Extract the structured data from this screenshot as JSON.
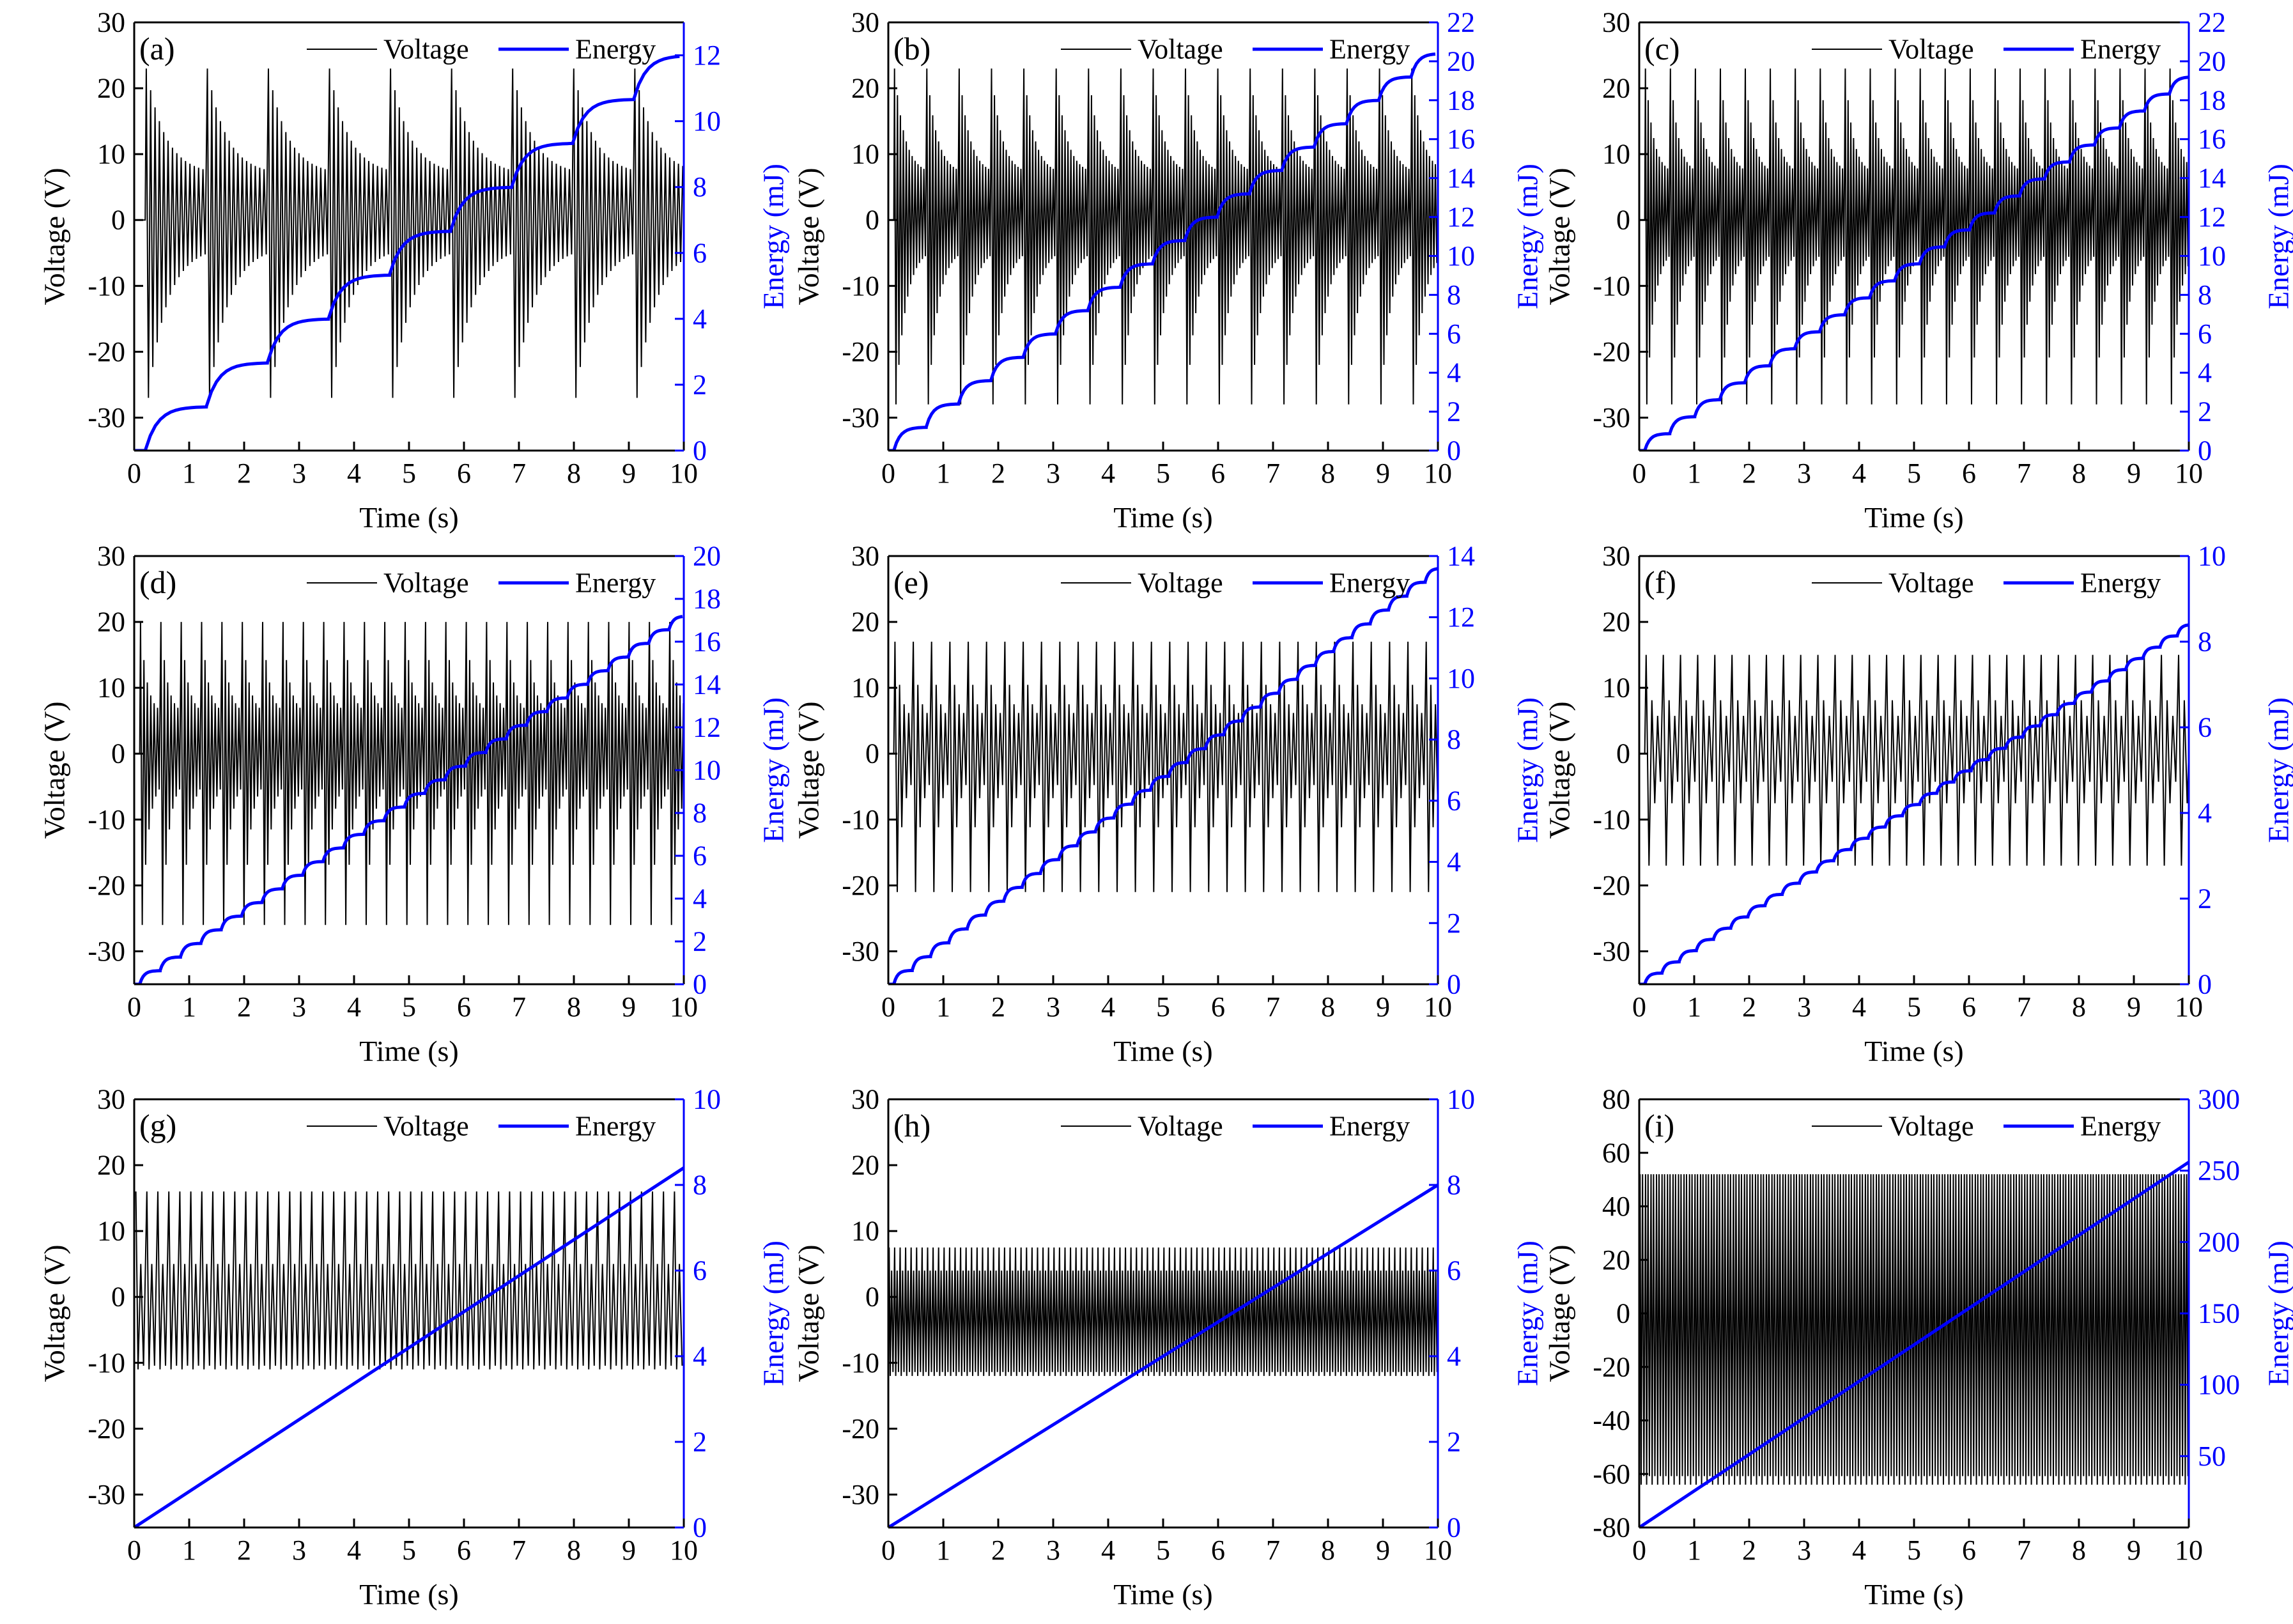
{
  "figure": {
    "colors": {
      "voltage": "#000000",
      "energy": "#0000ff",
      "axis": "#000000"
    }
  },
  "chart_data": [
    {
      "panel_label": "(a)",
      "type": "line",
      "xlabel": "Time (s)",
      "ylabel": "Voltage (V)",
      "ylabel_right": "Energy (mJ)",
      "xlim": [
        0,
        10
      ],
      "ylim": [
        -35,
        30
      ],
      "ylim_right": [
        0,
        13
      ],
      "xticks": [
        0,
        1,
        2,
        3,
        4,
        5,
        6,
        7,
        8,
        9,
        10
      ],
      "yticks": [
        -30,
        -20,
        -10,
        0,
        10,
        20,
        30
      ],
      "yticks_right": [
        0,
        2,
        4,
        6,
        8,
        10,
        12
      ],
      "legend": [
        "Voltage",
        "Energy"
      ],
      "legend_position": "top-right",
      "series": [
        {
          "name": "Voltage",
          "kind": "decaying bursts",
          "bursts_per_10s": 9,
          "cycles_per_burst": 14,
          "peak_positive": 23,
          "peak_negative": -27,
          "offset_t": 0.2
        },
        {
          "name": "Energy",
          "kind": "staircase",
          "steps": 9,
          "final_value": 12,
          "offset_t": 0.2
        }
      ]
    },
    {
      "panel_label": "(b)",
      "type": "line",
      "xlabel": "Time (s)",
      "ylabel": "Voltage (V)",
      "ylabel_right": "Energy (mJ)",
      "xlim": [
        0,
        10
      ],
      "ylim": [
        -35,
        30
      ],
      "ylim_right": [
        0,
        22
      ],
      "xticks": [
        0,
        1,
        2,
        3,
        4,
        5,
        6,
        7,
        8,
        9,
        10
      ],
      "yticks": [
        -30,
        -20,
        -10,
        0,
        10,
        20,
        30
      ],
      "yticks_right": [
        0,
        2,
        4,
        6,
        8,
        10,
        12,
        14,
        16,
        18,
        20,
        22
      ],
      "legend": [
        "Voltage",
        "Energy"
      ],
      "legend_position": "top-right",
      "series": [
        {
          "name": "Voltage",
          "kind": "decaying bursts",
          "bursts_per_10s": 17,
          "cycles_per_burst": 11,
          "peak_positive": 23,
          "peak_negative": -28,
          "offset_t": 0.1
        },
        {
          "name": "Energy",
          "kind": "staircase",
          "steps": 17,
          "final_value": 20.4,
          "offset_t": 0.1
        }
      ]
    },
    {
      "panel_label": "(c)",
      "type": "line",
      "xlabel": "Time (s)",
      "ylabel": "Voltage (V)",
      "ylabel_right": "Energy (mJ)",
      "xlim": [
        0,
        10
      ],
      "ylim": [
        -35,
        30
      ],
      "ylim_right": [
        0,
        22
      ],
      "xticks": [
        0,
        1,
        2,
        3,
        4,
        5,
        6,
        7,
        8,
        9,
        10
      ],
      "yticks": [
        -30,
        -20,
        -10,
        0,
        10,
        20,
        30
      ],
      "yticks_right": [
        0,
        2,
        4,
        6,
        8,
        10,
        12,
        14,
        16,
        18,
        20,
        22
      ],
      "legend": [
        "Voltage",
        "Energy"
      ],
      "legend_position": "top-right",
      "series": [
        {
          "name": "Voltage",
          "kind": "decaying bursts",
          "bursts_per_10s": 22,
          "cycles_per_burst": 9,
          "peak_positive": 23,
          "peak_negative": -28,
          "offset_t": 0.1
        },
        {
          "name": "Energy",
          "kind": "staircase",
          "steps": 22,
          "final_value": 19.2,
          "offset_t": 0.1
        }
      ]
    },
    {
      "panel_label": "(d)",
      "type": "line",
      "xlabel": "Time (s)",
      "ylabel": "Voltage (V)",
      "ylabel_right": "Energy (mJ)",
      "xlim": [
        0,
        10
      ],
      "ylim": [
        -35,
        30
      ],
      "ylim_right": [
        0,
        20
      ],
      "xticks": [
        0,
        1,
        2,
        3,
        4,
        5,
        6,
        7,
        8,
        9,
        10
      ],
      "yticks": [
        -30,
        -20,
        -10,
        0,
        10,
        20,
        30
      ],
      "yticks_right": [
        0,
        2,
        4,
        6,
        8,
        10,
        12,
        14,
        16,
        18,
        20
      ],
      "legend": [
        "Voltage",
        "Energy"
      ],
      "legend_position": "top-right",
      "series": [
        {
          "name": "Voltage",
          "kind": "decaying bursts",
          "bursts_per_10s": 27,
          "cycles_per_burst": 6,
          "peak_positive": 20,
          "peak_negative": -26,
          "offset_t": 0.1
        },
        {
          "name": "Energy",
          "kind": "staircase",
          "steps": 27,
          "final_value": 17.2,
          "offset_t": 0.1
        }
      ]
    },
    {
      "panel_label": "(e)",
      "type": "line",
      "xlabel": "Time (s)",
      "ylabel": "Voltage (V)",
      "ylabel_right": "Energy (mJ)",
      "xlim": [
        0,
        10
      ],
      "ylim": [
        -35,
        30
      ],
      "ylim_right": [
        0,
        14
      ],
      "xticks": [
        0,
        1,
        2,
        3,
        4,
        5,
        6,
        7,
        8,
        9,
        10
      ],
      "yticks": [
        -30,
        -20,
        -10,
        0,
        10,
        20,
        30
      ],
      "yticks_right": [
        0,
        2,
        4,
        6,
        8,
        10,
        12,
        14
      ],
      "legend": [
        "Voltage",
        "Energy"
      ],
      "legend_position": "top-right",
      "series": [
        {
          "name": "Voltage",
          "kind": "decaying bursts",
          "bursts_per_10s": 30,
          "cycles_per_burst": 4,
          "peak_positive": 17,
          "peak_negative": -21,
          "offset_t": 0.1
        },
        {
          "name": "Energy",
          "kind": "staircase",
          "steps": 30,
          "final_value": 13.6,
          "offset_t": 0.1
        }
      ]
    },
    {
      "panel_label": "(f)",
      "type": "line",
      "xlabel": "Time (s)",
      "ylabel": "Voltage (V)",
      "ylabel_right": "Energy (mJ)",
      "xlim": [
        0,
        10
      ],
      "ylim": [
        -35,
        30
      ],
      "ylim_right": [
        0,
        10
      ],
      "xticks": [
        0,
        1,
        2,
        3,
        4,
        5,
        6,
        7,
        8,
        9,
        10
      ],
      "yticks": [
        -30,
        -20,
        -10,
        0,
        10,
        20,
        30
      ],
      "yticks_right": [
        0,
        2,
        4,
        6,
        8,
        10
      ],
      "legend": [
        "Voltage",
        "Energy"
      ],
      "legend_position": "top-right",
      "series": [
        {
          "name": "Voltage",
          "kind": "decaying bursts",
          "bursts_per_10s": 32,
          "cycles_per_burst": 3,
          "peak_positive": 15,
          "peak_negative": -17,
          "offset_t": 0.1
        },
        {
          "name": "Energy",
          "kind": "staircase",
          "steps": 32,
          "final_value": 8.4,
          "offset_t": 0.1
        }
      ]
    },
    {
      "panel_label": "(g)",
      "type": "line",
      "xlabel": "Time (s)",
      "ylabel": "Voltage (V)",
      "ylabel_right": "Energy (mJ)",
      "xlim": [
        0,
        10
      ],
      "ylim": [
        -35,
        30
      ],
      "ylim_right": [
        0,
        10
      ],
      "xticks": [
        0,
        1,
        2,
        3,
        4,
        5,
        6,
        7,
        8,
        9,
        10
      ],
      "yticks": [
        -30,
        -20,
        -10,
        0,
        10,
        20,
        30
      ],
      "yticks_right": [
        0,
        2,
        4,
        6,
        8,
        10
      ],
      "legend": [
        "Voltage",
        "Energy"
      ],
      "legend_position": "top-right",
      "series": [
        {
          "name": "Voltage",
          "kind": "periodic",
          "cycles_per_10s": 50,
          "peak_positive": 16,
          "secondary_peak": 5,
          "peak_negative": -11
        },
        {
          "name": "Energy",
          "kind": "linear",
          "final_value": 8.4
        }
      ]
    },
    {
      "panel_label": "(h)",
      "type": "line",
      "xlabel": "Time (s)",
      "ylabel": "Voltage (V)",
      "ylabel_right": "Energy (mJ)",
      "xlim": [
        0,
        10
      ],
      "ylim": [
        -35,
        30
      ],
      "ylim_right": [
        0,
        10
      ],
      "xticks": [
        0,
        1,
        2,
        3,
        4,
        5,
        6,
        7,
        8,
        9,
        10
      ],
      "yticks": [
        -30,
        -20,
        -10,
        0,
        10,
        20,
        30
      ],
      "yticks_right": [
        0,
        2,
        4,
        6,
        8,
        10
      ],
      "legend": [
        "Voltage",
        "Energy"
      ],
      "legend_position": "top-right",
      "series": [
        {
          "name": "Voltage",
          "kind": "periodic",
          "cycles_per_10s": 100,
          "peak_positive": 7.5,
          "secondary_peak": 4,
          "peak_negative": -12
        },
        {
          "name": "Energy",
          "kind": "linear",
          "final_value": 8
        }
      ]
    },
    {
      "panel_label": "(i)",
      "type": "line",
      "xlabel": "Time (s)",
      "ylabel": "Voltage (V)",
      "ylabel_right": "Energy (mJ)",
      "xlim": [
        0,
        10
      ],
      "ylim": [
        -80,
        80
      ],
      "ylim_right": [
        0,
        300
      ],
      "xticks": [
        0,
        1,
        2,
        3,
        4,
        5,
        6,
        7,
        8,
        9,
        10
      ],
      "yticks": [
        -80,
        -60,
        -40,
        -20,
        0,
        20,
        40,
        60,
        80
      ],
      "yticks_right": [
        50,
        100,
        150,
        200,
        250,
        300
      ],
      "legend": [
        "Voltage",
        "Energy"
      ],
      "legend_position": "top-right",
      "series": [
        {
          "name": "Voltage",
          "kind": "periodic",
          "cycles_per_10s": 100,
          "peak_positive": 52,
          "secondary_peak": 52,
          "peak_negative": -64
        },
        {
          "name": "Energy",
          "kind": "linear",
          "final_value": 256
        }
      ]
    }
  ]
}
